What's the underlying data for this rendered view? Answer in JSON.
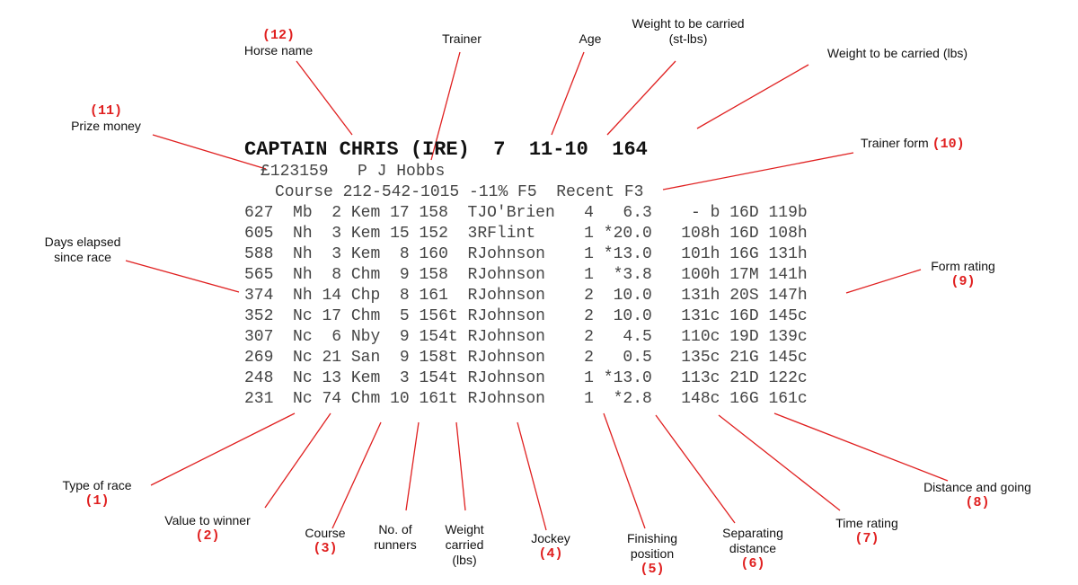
{
  "header": {
    "horse_name": "CAPTAIN CHRIS (IRE)",
    "age": "7",
    "weight_st_lbs": "11-10",
    "weight_lbs": "164"
  },
  "subheader": {
    "prize_money": "£123159",
    "trainer": "P J Hobbs",
    "trainer_form_line": "Course 212-542-1015 -11% F5  Recent F3"
  },
  "form_rows": [
    [
      "627",
      "Mb",
      " 2",
      "Kem",
      "17",
      "158 ",
      "TJO'Brien ",
      "4",
      "  6.3",
      "   - b",
      "16D",
      "119b"
    ],
    [
      "605",
      "Nh",
      " 3",
      "Kem",
      "15",
      "152 ",
      "3RFlint   ",
      "1",
      "*20.0",
      "  108h",
      "16D",
      "108h"
    ],
    [
      "588",
      "Nh",
      " 3",
      "Kem",
      " 8",
      "160 ",
      "RJohnson  ",
      "1",
      "*13.0",
      "  101h",
      "16G",
      "131h"
    ],
    [
      "565",
      "Nh",
      " 8",
      "Chm",
      " 9",
      "158 ",
      "RJohnson  ",
      "1",
      " *3.8",
      "  100h",
      "17M",
      "141h"
    ],
    [
      "374",
      "Nh",
      "14",
      "Chp",
      " 8",
      "161 ",
      "RJohnson  ",
      "2",
      " 10.0",
      "  131h",
      "20S",
      "147h"
    ],
    [
      "352",
      "Nc",
      "17",
      "Chm",
      " 5",
      "156t",
      "RJohnson  ",
      "2",
      " 10.0",
      "  131c",
      "16D",
      "145c"
    ],
    [
      "307",
      "Nc",
      " 6",
      "Nby",
      " 9",
      "154t",
      "RJohnson  ",
      "2",
      "  4.5",
      "  110c",
      "19D",
      "139c"
    ],
    [
      "269",
      "Nc",
      "21",
      "San",
      " 9",
      "158t",
      "RJohnson  ",
      "2",
      "  0.5",
      "  135c",
      "21G",
      "145c"
    ],
    [
      "248",
      "Nc",
      "13",
      "Kem",
      " 3",
      "154t",
      "RJohnson  ",
      "1",
      "*13.0",
      "  113c",
      "21D",
      "122c"
    ],
    [
      "231",
      "Nc",
      "74",
      "Chm",
      "10",
      "161t",
      "RJohnson  ",
      "1",
      " *2.8",
      "  148c",
      "16G",
      "161c"
    ]
  ],
  "labels": {
    "horse_name": {
      "num": "(12)",
      "text": "Horse name"
    },
    "trainer": {
      "text": "Trainer"
    },
    "age": {
      "text": "Age"
    },
    "weight_st_lbs": {
      "line1": "Weight to be carried",
      "line2": "(st-lbs)"
    },
    "weight_lbs": {
      "text": "Weight to be carried (lbs)"
    },
    "prize_money": {
      "num": "(11)",
      "text": "Prize money"
    },
    "trainer_form": {
      "text": "Trainer form",
      "num": "(10)"
    },
    "days_elapsed": {
      "line1": "Days elapsed",
      "line2": "since race"
    },
    "form_rating": {
      "text": "Form rating",
      "num": "(9)"
    },
    "type_of_race": {
      "text": "Type of race",
      "num": "(1)"
    },
    "value_to_winner": {
      "text": "Value to winner",
      "num": "(2)"
    },
    "course": {
      "text": "Course",
      "num": "(3)"
    },
    "no_of_runners": {
      "line1": "No. of",
      "line2": "runners"
    },
    "weight_carried": {
      "line1": "Weight",
      "line2": "carried",
      "line3": "(lbs)"
    },
    "jockey": {
      "text": "Jockey",
      "num": "(4)"
    },
    "finishing_position": {
      "line1": "Finishing",
      "line2": "position",
      "num": "(5)"
    },
    "separating_distance": {
      "line1": "Separating",
      "line2": "distance",
      "num": "(6)"
    },
    "time_rating": {
      "text": "Time rating",
      "num": "(7)"
    },
    "distance_going": {
      "text": "Distance and going",
      "num": "(8)"
    }
  },
  "colors": {
    "leader_line": "#e02020",
    "number": "#e02020",
    "form_text": "#444444",
    "header_text": "#111111"
  }
}
